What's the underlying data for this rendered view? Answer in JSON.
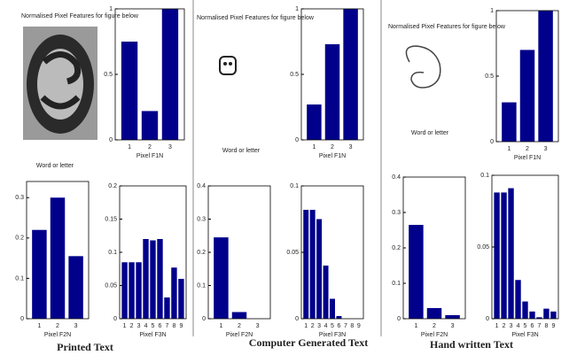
{
  "panels": [
    {
      "image_title": "Normalised Pixel Features for figure below",
      "image_label": "Word or letter",
      "caption": "Printed Text"
    },
    {
      "image_title": "Normalised Pixel Features for figure below",
      "image_label": "Word or letter",
      "caption": "Computer Generated Text"
    },
    {
      "image_title": "Normalised Pixel Features for figure below",
      "image_label": "Word or letter",
      "caption": "Hand written Text"
    }
  ],
  "chart_data": [
    {
      "type": "bar",
      "x_label": "Pixel F1N",
      "categories": [
        "1",
        "2",
        "3"
      ],
      "values": [
        0.75,
        0.22,
        1.0
      ],
      "color": "#00008b",
      "ylim": [
        0,
        1
      ],
      "yticks": [
        0,
        0.5,
        1
      ]
    },
    {
      "type": "bar",
      "x_label": "Pixel F2N",
      "categories": [
        "1",
        "2",
        "3"
      ],
      "values": [
        0.22,
        0.3,
        0.155
      ],
      "color": "#00008b",
      "ylim": [
        0,
        0.34
      ],
      "yticks": [
        0,
        0.1,
        0.2,
        0.3
      ]
    },
    {
      "type": "bar",
      "x_label": "Pixel F3N",
      "categories": [
        "1",
        "2",
        "3",
        "4",
        "5",
        "6",
        "7",
        "8",
        "9"
      ],
      "values": [
        0.085,
        0.085,
        0.085,
        0.12,
        0.118,
        0.12,
        0.032,
        0.077,
        0.06
      ],
      "color": "#00008b",
      "ylim": [
        0,
        0.2
      ],
      "yticks": [
        0,
        0.05,
        0.1,
        0.15,
        0.2
      ]
    },
    {
      "type": "bar",
      "x_label": "Pixel F1N",
      "categories": [
        "1",
        "2",
        "3"
      ],
      "values": [
        0.27,
        0.73,
        1.0
      ],
      "color": "#00008b",
      "ylim": [
        0,
        1
      ],
      "yticks": [
        0,
        0.5,
        1
      ]
    },
    {
      "type": "bar",
      "x_label": "Pixel F2N",
      "categories": [
        "1",
        "2",
        "3"
      ],
      "values": [
        0.245,
        0.02,
        0
      ],
      "color": "#00008b",
      "ylim": [
        0,
        0.4
      ],
      "yticks": [
        0,
        0.1,
        0.2,
        0.3,
        0.4
      ]
    },
    {
      "type": "bar",
      "x_label": "Pixel F3N",
      "categories": [
        "1",
        "2",
        "3",
        "4",
        "5",
        "6",
        "7",
        "8",
        "9"
      ],
      "values": [
        0.082,
        0.082,
        0.075,
        0.04,
        0.015,
        0.002,
        0,
        0,
        0
      ],
      "color": "#00008b",
      "ylim": [
        0,
        0.1
      ],
      "yticks": [
        0,
        0.05,
        0.1
      ]
    },
    {
      "type": "bar",
      "x_label": "Pixel F1N",
      "categories": [
        "1",
        "2",
        "3"
      ],
      "values": [
        0.3,
        0.7,
        1.0
      ],
      "color": "#00008b",
      "ylim": [
        0,
        1
      ],
      "yticks": [
        0,
        0.5,
        1
      ]
    },
    {
      "type": "bar",
      "x_label": "Pixel F2N",
      "categories": [
        "1",
        "2",
        "3"
      ],
      "values": [
        0.265,
        0.03,
        0.01
      ],
      "color": "#00008b",
      "ylim": [
        0,
        0.4
      ],
      "yticks": [
        0,
        0.1,
        0.2,
        0.3,
        0.4
      ]
    },
    {
      "type": "bar",
      "x_label": "Pixel F3N",
      "categories": [
        "1",
        "2",
        "3",
        "4",
        "5",
        "6",
        "7",
        "8",
        "9"
      ],
      "values": [
        0.088,
        0.088,
        0.091,
        0.027,
        0.012,
        0.005,
        0.001,
        0.007,
        0.005
      ],
      "color": "#00008b",
      "ylim": [
        0,
        0.1
      ],
      "yticks": [
        0,
        0.05,
        0.1
      ]
    }
  ]
}
